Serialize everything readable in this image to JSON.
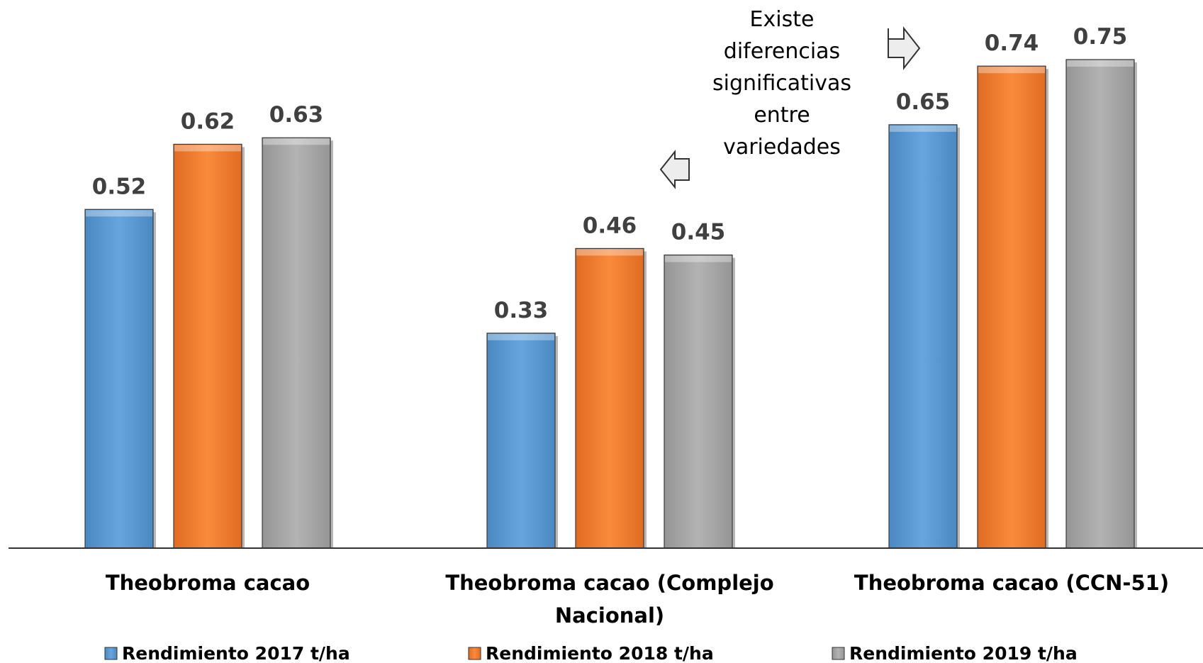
{
  "chart_data": {
    "type": "bar",
    "title": "",
    "xlabel": "",
    "ylabel": "",
    "ylim": [
      0,
      0.8
    ],
    "grid": false,
    "legend_position": "bottom",
    "categories": [
      [
        "Theobroma cacao"
      ],
      [
        "Theobroma cacao (Complejo",
        "Nacional)"
      ],
      [
        "Theobroma cacao (CCN-51)"
      ]
    ],
    "series": [
      {
        "name": "Rendimiento 2017 t/ha",
        "color": "#5B9BD5",
        "values": [
          0.52,
          0.33,
          0.65
        ],
        "labels": [
          "0.52",
          "0.33",
          "0.65"
        ]
      },
      {
        "name": "Rendimiento 2018 t/ha",
        "color": "#ED7D31",
        "values": [
          0.62,
          0.46,
          0.74
        ],
        "labels": [
          "0.62",
          "0.46",
          "0.74"
        ]
      },
      {
        "name": "Rendimiento 2019 t/ha",
        "color": "#A5A5A5",
        "values": [
          0.63,
          0.45,
          0.75
        ],
        "labels": [
          "0.63",
          "0.45",
          "0.75"
        ]
      }
    ],
    "annotations": [
      {
        "text": [
          "Existe",
          "diferencias",
          "significativas",
          "entre",
          "variedades"
        ],
        "arrows": [
          "left-arrow-icon",
          "right-arrow-icon"
        ]
      }
    ]
  }
}
